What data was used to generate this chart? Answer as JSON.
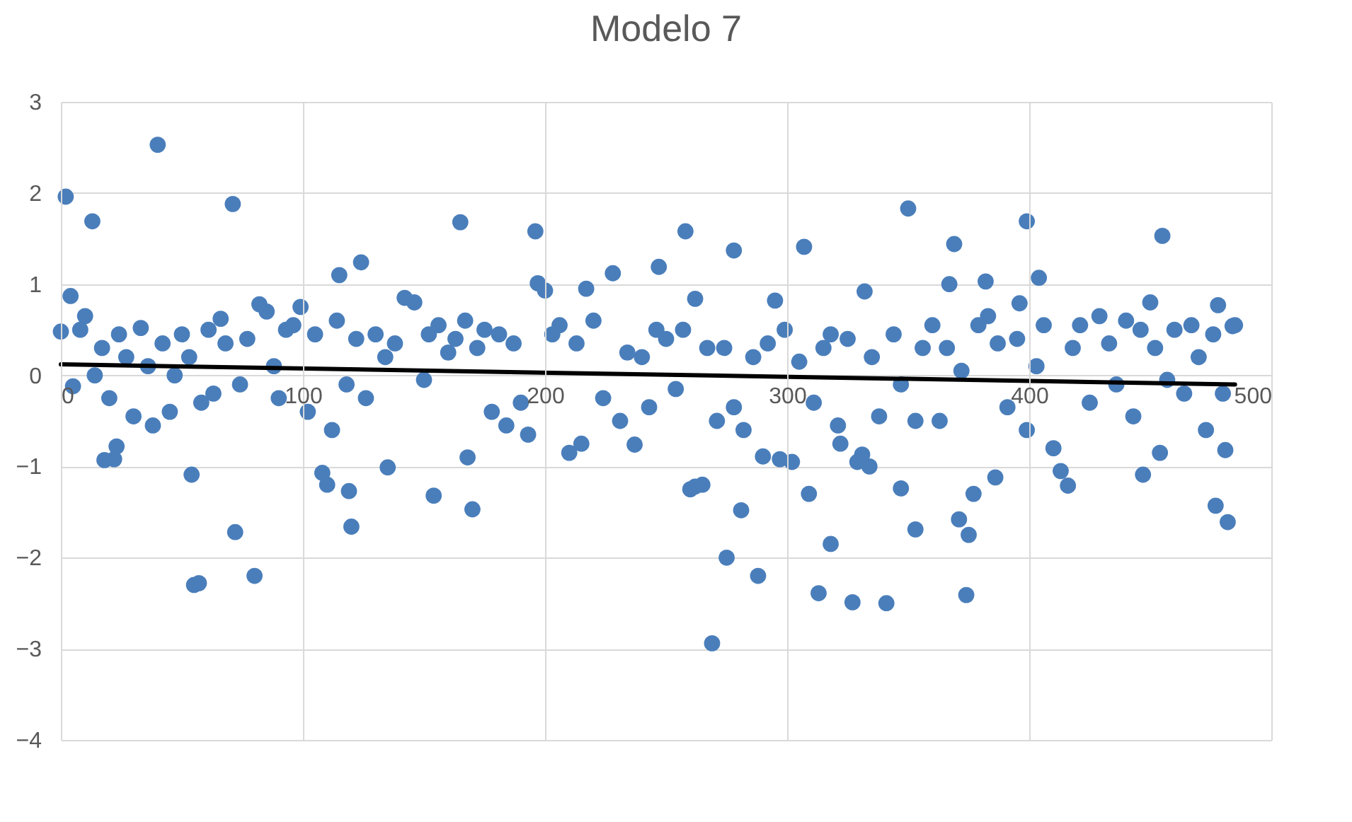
{
  "chart_data": {
    "type": "scatter",
    "title": "Modelo 7",
    "xlim": [
      0,
      500
    ],
    "xticks": [
      0,
      100,
      200,
      300,
      400,
      500
    ],
    "ylim": [
      -4,
      3
    ],
    "yticks": [
      -4,
      -3,
      -2,
      -1,
      0,
      1,
      2,
      3
    ],
    "grid": true,
    "series": [
      {
        "marker": "circle",
        "color": "#4a7ebb",
        "x": [
          2,
          4,
          13,
          40,
          71,
          72,
          80,
          55,
          57,
          54,
          18,
          22,
          23,
          119,
          115,
          124,
          120,
          165,
          170,
          196,
          197,
          200,
          258,
          247,
          262,
          269,
          278,
          275,
          288,
          307,
          313,
          318,
          327,
          341,
          350,
          367,
          369,
          374,
          375,
          399,
          404,
          455,
          477,
          482,
          478,
          484,
          481,
          353,
          371,
          377,
          416,
          447,
          454,
          386,
          347,
          309,
          154,
          135,
          168,
          215,
          237,
          260,
          265,
          281,
          290,
          297,
          322,
          331,
          334,
          382,
          396,
          0,
          5,
          8,
          10,
          14,
          17,
          20,
          24,
          27,
          30,
          33,
          36,
          38,
          42,
          45,
          47,
          50,
          53,
          58,
          61,
          63,
          66,
          68,
          74,
          77,
          82,
          85,
          88,
          90,
          93,
          96,
          99,
          102,
          105,
          108,
          110,
          112,
          114,
          118,
          122,
          126,
          130,
          134,
          138,
          142,
          146,
          150,
          152,
          156,
          160,
          163,
          167,
          172,
          175,
          178,
          181,
          184,
          187,
          190,
          193,
          203,
          206,
          210,
          213,
          217,
          220,
          224,
          228,
          231,
          234,
          240,
          243,
          246,
          250,
          254,
          257,
          262,
          267,
          271,
          274,
          278,
          282,
          286,
          292,
          295,
          299,
          302,
          305,
          311,
          315,
          318,
          321,
          325,
          329,
          332,
          335,
          338,
          344,
          347,
          353,
          356,
          360,
          363,
          366,
          372,
          379,
          383,
          387,
          391,
          395,
          399,
          403,
          406,
          410,
          413,
          418,
          421,
          425,
          429,
          433,
          436,
          440,
          443,
          446,
          450,
          452,
          457,
          460,
          464,
          467,
          470,
          473,
          476,
          480,
          485
        ],
        "values": [
          1.96,
          0.87,
          1.69,
          2.53,
          1.88,
          -1.72,
          -2.2,
          -2.3,
          -2.28,
          -1.09,
          -0.93,
          -0.92,
          -0.78,
          -1.27,
          1.1,
          1.24,
          -1.66,
          1.68,
          -1.47,
          1.58,
          1.01,
          0.93,
          1.58,
          1.19,
          0.84,
          -2.94,
          1.37,
          -2.0,
          -2.2,
          1.41,
          -2.39,
          -1.85,
          -2.49,
          -2.5,
          1.83,
          1.0,
          1.44,
          -2.41,
          -1.75,
          1.69,
          1.07,
          1.53,
          -1.43,
          -1.61,
          0.77,
          0.54,
          -0.82,
          -1.69,
          -1.58,
          -1.3,
          -1.21,
          -1.09,
          -0.85,
          -1.12,
          -1.24,
          -1.3,
          -1.32,
          -1.01,
          -0.9,
          -0.75,
          -0.76,
          -1.25,
          -1.2,
          -1.48,
          -0.89,
          -0.92,
          -0.75,
          -0.87,
          -1.0,
          1.03,
          0.79,
          0.48,
          -0.12,
          0.5,
          0.65,
          0.0,
          0.3,
          -0.25,
          0.45,
          0.2,
          -0.45,
          0.52,
          0.1,
          -0.55,
          0.35,
          -0.4,
          0.0,
          0.45,
          0.2,
          -0.3,
          0.5,
          -0.2,
          0.62,
          0.35,
          -0.1,
          0.4,
          0.78,
          0.7,
          0.1,
          -0.25,
          0.5,
          0.55,
          0.75,
          -0.4,
          0.45,
          -1.07,
          -1.2,
          -0.6,
          0.6,
          -0.1,
          0.4,
          -0.25,
          0.45,
          0.2,
          0.35,
          0.85,
          0.8,
          -0.05,
          0.45,
          0.55,
          0.25,
          0.4,
          0.6,
          0.3,
          0.5,
          -0.4,
          0.45,
          -0.55,
          0.35,
          -0.3,
          -0.65,
          0.45,
          0.55,
          -0.85,
          0.35,
          0.95,
          0.6,
          -0.25,
          1.12,
          -0.5,
          0.25,
          0.2,
          -0.35,
          0.5,
          0.4,
          -0.15,
          0.5,
          -1.22,
          0.3,
          -0.5,
          0.3,
          -0.35,
          -0.6,
          0.2,
          0.35,
          0.82,
          0.5,
          -0.95,
          0.15,
          -0.3,
          0.3,
          0.45,
          -0.55,
          0.4,
          -0.95,
          0.92,
          0.2,
          -0.45,
          0.45,
          -0.1,
          -0.5,
          0.3,
          0.55,
          -0.5,
          0.3,
          0.05,
          0.55,
          0.65,
          0.35,
          -0.35,
          0.4,
          -0.6,
          0.1,
          0.55,
          -0.8,
          -1.05,
          0.3,
          0.55,
          -0.3,
          0.65,
          0.35,
          -0.1,
          0.6,
          -0.45,
          0.5,
          0.8,
          0.3,
          -0.05,
          0.5,
          -0.2,
          0.55,
          0.2,
          -0.6,
          0.45,
          -0.2,
          0.55
        ]
      },
      {
        "type": "line",
        "color": "#000000",
        "x": [
          0,
          485
        ],
        "values": [
          0.12,
          -0.1
        ]
      }
    ]
  }
}
